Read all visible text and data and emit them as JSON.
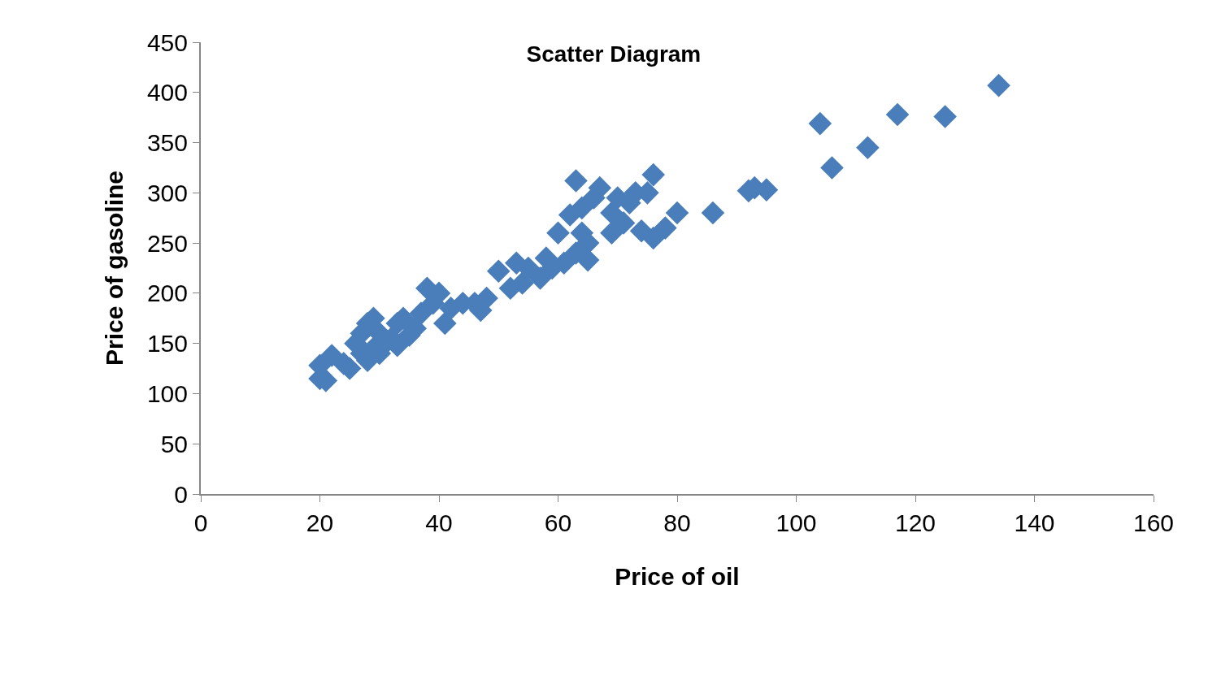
{
  "chart_data": {
    "type": "scatter",
    "title": "Scatter Diagram",
    "xlabel": "Price of oil",
    "ylabel": "Price of gasoline",
    "x": [
      20,
      20,
      21,
      22,
      24,
      25,
      26,
      27,
      27,
      28,
      28,
      29,
      29,
      30,
      30,
      31,
      32,
      33,
      33,
      34,
      35,
      36,
      37,
      38,
      39,
      40,
      41,
      42,
      44,
      46,
      47,
      48,
      50,
      52,
      53,
      54,
      55,
      57,
      58,
      59,
      60,
      61,
      62,
      63,
      63,
      64,
      64,
      65,
      65,
      66,
      67,
      69,
      69,
      70,
      71,
      72,
      73,
      74,
      75,
      76,
      76,
      78,
      80,
      86,
      92,
      93,
      95,
      104,
      106,
      112,
      117,
      125,
      134
    ],
    "values": [
      115,
      128,
      113,
      138,
      130,
      125,
      150,
      140,
      160,
      133,
      170,
      175,
      145,
      140,
      160,
      150,
      155,
      148,
      170,
      175,
      158,
      165,
      180,
      205,
      190,
      200,
      170,
      185,
      190,
      190,
      183,
      195,
      222,
      205,
      230,
      210,
      225,
      215,
      235,
      225,
      260,
      230,
      278,
      312,
      240,
      285,
      260,
      250,
      233,
      295,
      305,
      260,
      280,
      295,
      270,
      290,
      300,
      262,
      300,
      255,
      318,
      265,
      280,
      280,
      302,
      305,
      303,
      369,
      325,
      345,
      378,
      376,
      407
    ],
    "color": "#4a7ebb",
    "marker": "diamond",
    "xlim": [
      0,
      160
    ],
    "xticks": [
      0,
      20,
      40,
      60,
      80,
      100,
      120,
      140,
      160
    ],
    "ylim": [
      0,
      450
    ],
    "yticks": [
      0,
      50,
      100,
      150,
      200,
      250,
      300,
      350,
      400,
      450
    ]
  }
}
